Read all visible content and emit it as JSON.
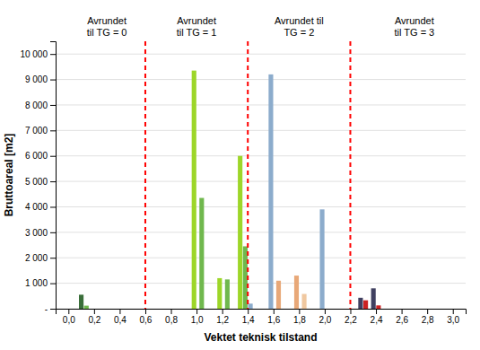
{
  "chart_data": {
    "type": "bar",
    "xlabel": "Vektet teknisk tilstand",
    "ylabel": "Bruttoareal [m2]",
    "x": [
      0.1,
      0.14,
      0.98,
      1.04,
      1.18,
      1.24,
      1.34,
      1.38,
      1.42,
      1.58,
      1.64,
      1.78,
      1.84,
      1.98,
      2.28,
      2.32,
      2.38,
      2.42
    ],
    "values": [
      550,
      120,
      9350,
      4350,
      1200,
      1150,
      6000,
      2450,
      200,
      9200,
      1100,
      1300,
      580,
      3900,
      430,
      330,
      800,
      130
    ],
    "colors": [
      "#3a6e3a",
      "#70b84e",
      "#9dd629",
      "#70b84e",
      "#9dd629",
      "#70b84e",
      "#9dd629",
      "#70b84e",
      "#8caccc",
      "#8caccc",
      "#e8a878",
      "#e8a878",
      "#f0c8a0",
      "#8caccc",
      "#404060",
      "#cc2222",
      "#404060",
      "#cc2222"
    ],
    "xlim": [
      -0.1,
      3.1
    ],
    "xticks": [
      {
        "value": 0.0,
        "label": "0,0"
      },
      {
        "value": 0.2,
        "label": "0,2"
      },
      {
        "value": 0.4,
        "label": "0,4"
      },
      {
        "value": 0.6,
        "label": "0,6"
      },
      {
        "value": 0.8,
        "label": "0,8"
      },
      {
        "value": 1.0,
        "label": "1,0"
      },
      {
        "value": 1.2,
        "label": "1,2"
      },
      {
        "value": 1.4,
        "label": "1,4"
      },
      {
        "value": 1.6,
        "label": "1,6"
      },
      {
        "value": 1.8,
        "label": "1,8"
      },
      {
        "value": 2.0,
        "label": "2,0"
      },
      {
        "value": 2.2,
        "label": "2,2"
      },
      {
        "value": 2.4,
        "label": "2,4"
      },
      {
        "value": 2.6,
        "label": "2,6"
      },
      {
        "value": 2.8,
        "label": "2,8"
      },
      {
        "value": 3.0,
        "label": "3,0"
      }
    ],
    "ylim": [
      0,
      10500
    ],
    "yticks": [
      {
        "value": 0,
        "label": "-"
      },
      {
        "value": 1000,
        "label": "1 000"
      },
      {
        "value": 2000,
        "label": "2 000"
      },
      {
        "value": 3000,
        "label": "3 000"
      },
      {
        "value": 4000,
        "label": "4 000"
      },
      {
        "value": 5000,
        "label": "5 000"
      },
      {
        "value": 6000,
        "label": "6 000"
      },
      {
        "value": 7000,
        "label": "7 000"
      },
      {
        "value": 8000,
        "label": "8 000"
      },
      {
        "value": 9000,
        "label": "9 000"
      },
      {
        "value": 10000,
        "label": "10 000"
      }
    ],
    "grid": true,
    "vlines": [
      {
        "x": 0.6,
        "color": "red"
      },
      {
        "x": 1.4,
        "color": "red"
      },
      {
        "x": 2.2,
        "color": "red"
      }
    ],
    "annotations": [
      {
        "text": "Avrundet\ntil TG = 0",
        "x": 0.3
      },
      {
        "text": "Avrundet\ntil TG = 1",
        "x": 1.0
      },
      {
        "text": "Avrundet til\nTG = 2",
        "x": 1.8
      },
      {
        "text": "Avrundet\ntil TG = 3",
        "x": 2.7
      }
    ]
  }
}
